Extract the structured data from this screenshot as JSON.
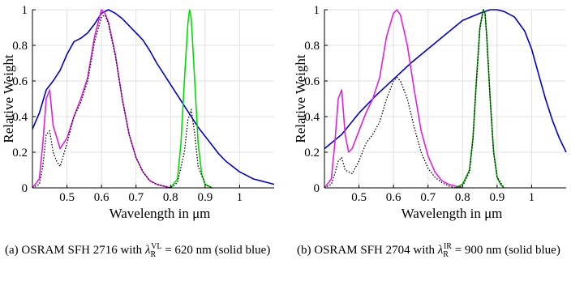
{
  "chart_data": [
    {
      "type": "line",
      "xlabel": "Wavelength in μm",
      "ylabel": "Relative Weight",
      "xlim": [
        0.4,
        1.1
      ],
      "ylim": [
        0,
        1
      ],
      "xticks": [
        0.5,
        0.6,
        0.7,
        0.8,
        0.9,
        1
      ],
      "xtick_labels": [
        "0.5",
        "0.6",
        "0.7",
        "0.8",
        "0.9",
        "1"
      ],
      "yticks": [
        0,
        0.2,
        0.4,
        0.6,
        0.8,
        1
      ],
      "ytick_labels": [
        "0",
        "0.2",
        "0.4",
        "0.6",
        "0.8",
        "1"
      ],
      "grid": true,
      "series": [
        {
          "color": "#0000cc",
          "style": "solid",
          "x": [
            0.4,
            0.42,
            0.44,
            0.46,
            0.48,
            0.5,
            0.52,
            0.54,
            0.56,
            0.58,
            0.6,
            0.62,
            0.64,
            0.66,
            0.68,
            0.7,
            0.72,
            0.74,
            0.76,
            0.78,
            0.8,
            0.82,
            0.84,
            0.86,
            0.88,
            0.9,
            0.92,
            0.94,
            0.96,
            0.98,
            1.0,
            1.02,
            1.04,
            1.06,
            1.08,
            1.1
          ],
          "y": [
            0.33,
            0.42,
            0.55,
            0.6,
            0.66,
            0.75,
            0.82,
            0.84,
            0.87,
            0.92,
            0.98,
            1.0,
            0.98,
            0.95,
            0.91,
            0.87,
            0.83,
            0.77,
            0.7,
            0.64,
            0.58,
            0.52,
            0.46,
            0.4,
            0.34,
            0.29,
            0.24,
            0.19,
            0.15,
            0.12,
            0.09,
            0.07,
            0.05,
            0.04,
            0.03,
            0.02
          ]
        },
        {
          "color": "#e020e0",
          "style": "solid",
          "x": [
            0.4,
            0.42,
            0.43,
            0.44,
            0.45,
            0.46,
            0.48,
            0.5,
            0.52,
            0.54,
            0.56,
            0.58,
            0.6,
            0.61,
            0.62,
            0.64,
            0.66,
            0.68,
            0.7,
            0.72,
            0.74,
            0.76,
            0.78,
            0.8
          ],
          "y": [
            0,
            0.05,
            0.25,
            0.5,
            0.55,
            0.35,
            0.22,
            0.28,
            0.4,
            0.5,
            0.62,
            0.85,
            1.0,
            0.98,
            0.93,
            0.75,
            0.5,
            0.3,
            0.17,
            0.09,
            0.04,
            0.02,
            0.01,
            0
          ]
        },
        {
          "color": "#00dd00",
          "style": "solid",
          "x": [
            0.8,
            0.82,
            0.83,
            0.84,
            0.85,
            0.855,
            0.86,
            0.87,
            0.88,
            0.89,
            0.9,
            0.92
          ],
          "y": [
            0,
            0.05,
            0.25,
            0.6,
            0.92,
            1.0,
            0.95,
            0.6,
            0.25,
            0.08,
            0.02,
            0
          ]
        },
        {
          "color": "#000000",
          "style": "dotted",
          "x": [
            0.4,
            0.42,
            0.43,
            0.44,
            0.45,
            0.46,
            0.47,
            0.48,
            0.5,
            0.52,
            0.54,
            0.56,
            0.58,
            0.6,
            0.61,
            0.62,
            0.64,
            0.66,
            0.68,
            0.7,
            0.72,
            0.74,
            0.76,
            0.78,
            0.8,
            0.82,
            0.84,
            0.85,
            0.86,
            0.87,
            0.88,
            0.9,
            0.92
          ],
          "y": [
            0,
            0.02,
            0.12,
            0.3,
            0.32,
            0.2,
            0.15,
            0.12,
            0.25,
            0.4,
            0.48,
            0.6,
            0.82,
            0.96,
            0.97,
            0.92,
            0.74,
            0.5,
            0.3,
            0.17,
            0.09,
            0.04,
            0.02,
            0.01,
            0,
            0.03,
            0.2,
            0.38,
            0.44,
            0.3,
            0.12,
            0.02,
            0
          ]
        }
      ]
    },
    {
      "type": "line",
      "xlabel": "Wavelength in μm",
      "ylabel": "Relative Weight",
      "xlim": [
        0.4,
        1.1
      ],
      "ylim": [
        0,
        1
      ],
      "xticks": [
        0.5,
        0.6,
        0.7,
        0.8,
        0.9,
        1
      ],
      "xtick_labels": [
        "0.5",
        "0.6",
        "0.7",
        "0.8",
        "0.9",
        "1"
      ],
      "yticks": [
        0,
        0.2,
        0.4,
        0.6,
        0.8,
        1
      ],
      "ytick_labels": [
        "0",
        "0.2",
        "0.4",
        "0.6",
        "0.8",
        "1"
      ],
      "grid": true,
      "series": [
        {
          "color": "#0000cc",
          "style": "solid",
          "x": [
            0.4,
            0.45,
            0.5,
            0.55,
            0.6,
            0.65,
            0.7,
            0.75,
            0.8,
            0.85,
            0.88,
            0.9,
            0.92,
            0.95,
            0.98,
            1.0,
            1.02,
            1.04,
            1.06,
            1.08,
            1.1
          ],
          "y": [
            0.22,
            0.3,
            0.42,
            0.52,
            0.61,
            0.7,
            0.78,
            0.86,
            0.94,
            0.98,
            1.0,
            1.0,
            0.99,
            0.96,
            0.88,
            0.78,
            0.64,
            0.5,
            0.38,
            0.28,
            0.2
          ]
        },
        {
          "color": "#e020e0",
          "style": "solid",
          "x": [
            0.4,
            0.42,
            0.43,
            0.44,
            0.45,
            0.46,
            0.47,
            0.48,
            0.5,
            0.52,
            0.54,
            0.56,
            0.58,
            0.6,
            0.61,
            0.62,
            0.64,
            0.66,
            0.68,
            0.7,
            0.72,
            0.74,
            0.76,
            0.78,
            0.8
          ],
          "y": [
            0,
            0.05,
            0.25,
            0.5,
            0.55,
            0.3,
            0.2,
            0.22,
            0.32,
            0.42,
            0.5,
            0.62,
            0.85,
            0.98,
            1.0,
            0.97,
            0.8,
            0.55,
            0.32,
            0.18,
            0.09,
            0.04,
            0.02,
            0.01,
            0
          ]
        },
        {
          "color": "#00aa00",
          "style": "solid",
          "x": [
            0.78,
            0.8,
            0.82,
            0.83,
            0.84,
            0.85,
            0.86,
            0.865,
            0.87,
            0.88,
            0.89,
            0.9,
            0.91,
            0.92
          ],
          "y": [
            0,
            0.02,
            0.1,
            0.28,
            0.6,
            0.9,
            1.0,
            0.98,
            0.85,
            0.5,
            0.2,
            0.06,
            0.02,
            0
          ]
        },
        {
          "color": "#000000",
          "style": "dotted",
          "x": [
            0.4,
            0.42,
            0.43,
            0.44,
            0.45,
            0.46,
            0.48,
            0.5,
            0.52,
            0.54,
            0.56,
            0.58,
            0.6,
            0.61,
            0.62,
            0.64,
            0.66,
            0.68,
            0.7,
            0.72,
            0.74,
            0.76,
            0.78,
            0.8,
            0.82,
            0.83,
            0.84,
            0.85,
            0.86,
            0.865,
            0.87,
            0.88,
            0.89,
            0.9,
            0.92
          ],
          "y": [
            0,
            0.02,
            0.08,
            0.15,
            0.17,
            0.1,
            0.08,
            0.15,
            0.25,
            0.3,
            0.37,
            0.5,
            0.6,
            0.62,
            0.6,
            0.5,
            0.34,
            0.2,
            0.11,
            0.06,
            0.03,
            0.01,
            0,
            0.01,
            0.09,
            0.27,
            0.59,
            0.89,
            1.0,
            0.98,
            0.85,
            0.5,
            0.2,
            0.06,
            0
          ]
        }
      ]
    }
  ],
  "captions": [
    {
      "prefix": "(a) OSRAM SFH 2716 with ",
      "sym": "λ",
      "sup": "VL",
      "sub": "R",
      "suffix": " = 620 nm (solid blue)"
    },
    {
      "prefix": "(b) OSRAM SFH 2704 with ",
      "sym": "λ",
      "sup": "IR",
      "sub": "R",
      "suffix": " = 900 nm (solid blue)"
    }
  ]
}
